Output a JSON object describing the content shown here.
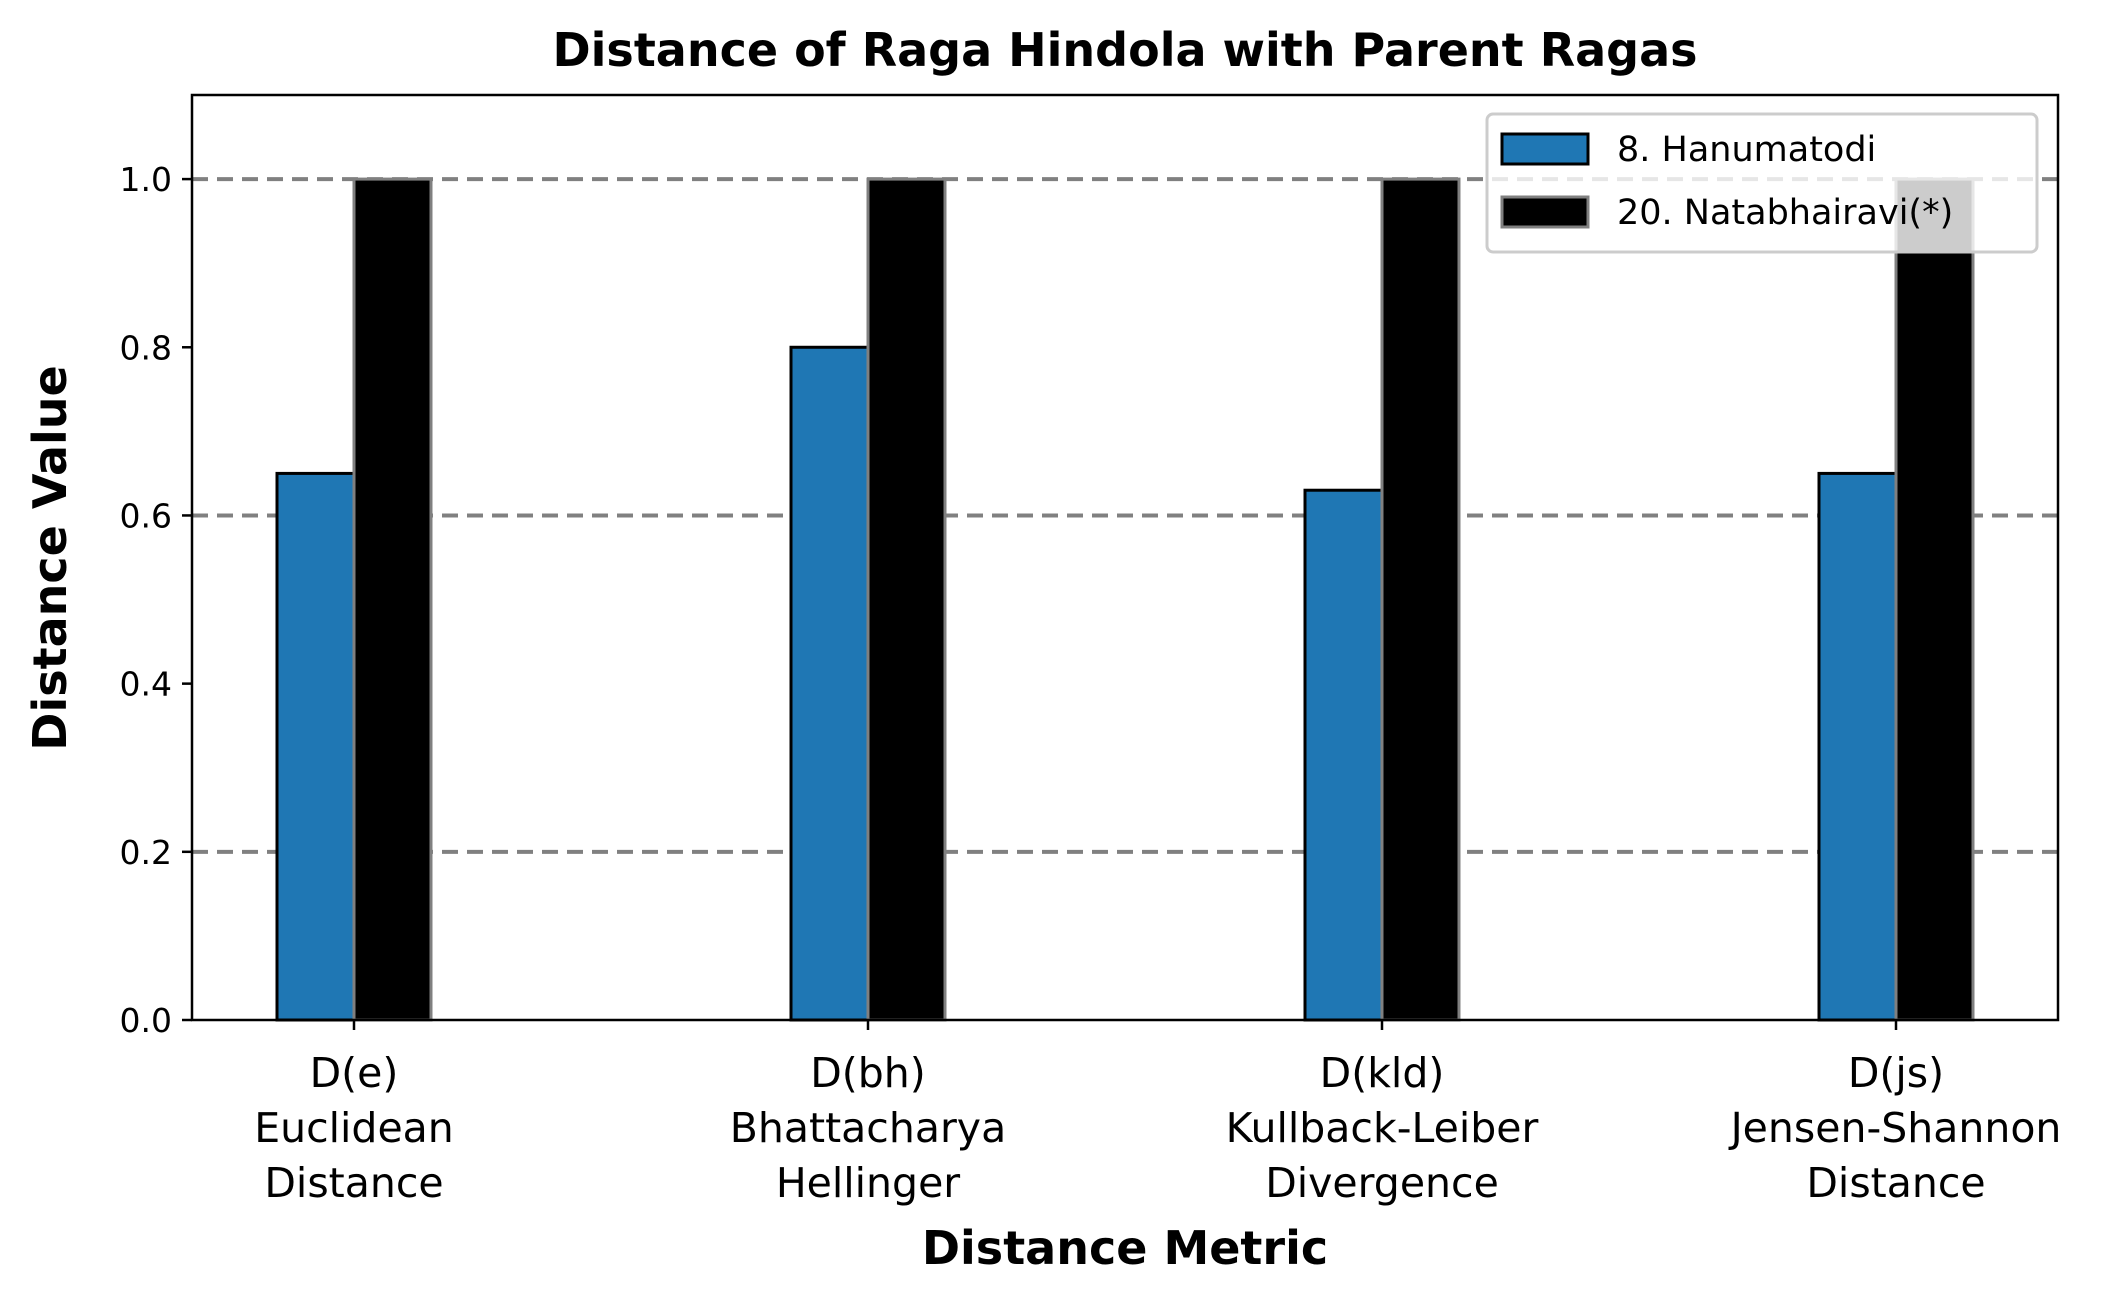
{
  "chart_data": {
    "type": "bar",
    "title": "Distance of Raga Hindola with Parent Ragas",
    "xlabel": "Distance Metric",
    "ylabel": "Distance Value",
    "ylim": [
      0,
      1.1
    ],
    "yticks": [
      "0.0",
      "0.2",
      "0.4",
      "0.6",
      "0.8",
      "1.0"
    ],
    "gridlines_y": [
      0.2,
      0.6,
      1.0
    ],
    "grid": "horizontal dashed at 0.2, 0.6, 1.0",
    "legend_position": "top-right",
    "categories": [
      [
        "D(e)",
        "Euclidean",
        "Distance"
      ],
      [
        "D(bh)",
        "Bhattacharya",
        "Hellinger"
      ],
      [
        "D(kld)",
        "Kullback-Leiber",
        "Divergence"
      ],
      [
        "D(js)",
        "Jensen-Shannon",
        "Distance"
      ]
    ],
    "series": [
      {
        "name": "8. Hanumatodi",
        "color": "#1f77b4",
        "edge": "#000000",
        "values": [
          0.65,
          0.8,
          0.63,
          0.65
        ]
      },
      {
        "name": "20. Natabhairavi(*)",
        "color": "#000000",
        "edge": "#808080",
        "values": [
          1.0,
          1.0,
          1.0,
          1.0
        ]
      }
    ]
  }
}
